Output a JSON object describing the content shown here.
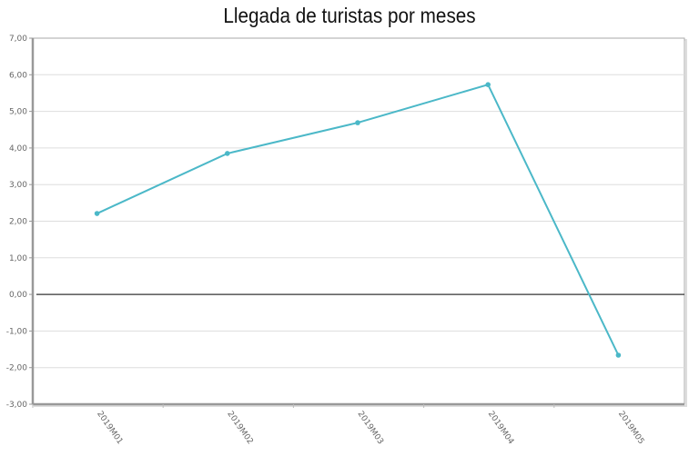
{
  "chart_data": {
    "type": "line",
    "title": "Llegada de turistas por meses",
    "xlabel": "",
    "ylabel": "",
    "categories": [
      "2019M01",
      "2019M02",
      "2019M03",
      "2019M04",
      "2019M05"
    ],
    "series": [
      {
        "name": "Llegada de turistas",
        "values": [
          2.21,
          3.85,
          4.69,
          5.73,
          -1.66
        ],
        "color": "#4bb8c8"
      }
    ],
    "ylim": [
      -3,
      7
    ],
    "yticks": [
      7,
      6,
      5,
      4,
      3,
      2,
      1,
      0,
      -1,
      -2,
      -3
    ],
    "ytick_labels": [
      "7,00",
      "6,00",
      "5,00",
      "4,00",
      "3,00",
      "2,00",
      "1,00",
      "0,00",
      "-1,00",
      "-2,00",
      "-3,00"
    ],
    "grid": true,
    "legend": "none"
  }
}
